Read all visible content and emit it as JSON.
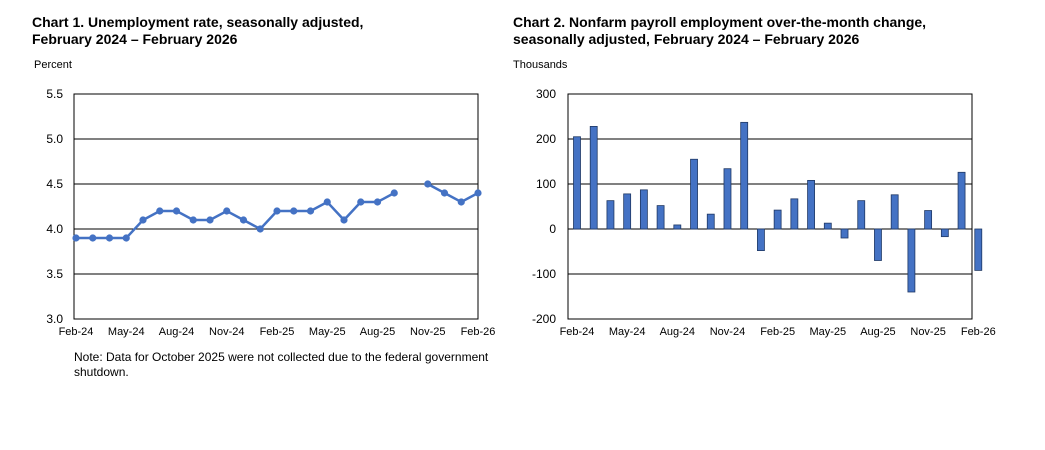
{
  "colors": {
    "series": "#4472C4",
    "bar_fill": "#4472C4",
    "bar_stroke": "#1F3864",
    "grid": "#000000"
  },
  "charts": [
    {
      "title_line1": "Chart 1. Unemployment rate, seasonally adjusted,",
      "title_line2": "February 2024 – February 2026",
      "unit_label": "Percent",
      "note": "Note: Data for October 2025 were not collected due to the federal government shutdown."
    },
    {
      "title_line1": "Chart 2. Nonfarm payroll employment over-the-month change,",
      "title_line2": "seasonally adjusted, February 2024 – February 2026",
      "unit_label": "Thousands"
    }
  ],
  "chart_data": [
    {
      "type": "line",
      "title": "Chart 1. Unemployment rate, seasonally adjusted, February 2024 – February 2026",
      "ylabel": "Percent",
      "ylim": [
        3.0,
        5.5
      ],
      "yticks": [
        3.0,
        3.5,
        4.0,
        4.5,
        5.0,
        5.5
      ],
      "ytick_labels": [
        "3.0",
        "3.5",
        "4.0",
        "4.5",
        "5.0",
        "5.5"
      ],
      "x": [
        "Feb-24",
        "Mar-24",
        "Apr-24",
        "May-24",
        "Jun-24",
        "Jul-24",
        "Aug-24",
        "Sep-24",
        "Oct-24",
        "Nov-24",
        "Dec-24",
        "Jan-25",
        "Feb-25",
        "Mar-25",
        "Apr-25",
        "May-25",
        "Jun-25",
        "Jul-25",
        "Aug-25",
        "Sep-25",
        "Oct-25",
        "Nov-25",
        "Dec-25",
        "Jan-26",
        "Feb-26"
      ],
      "xtick_labels": [
        "Feb-24",
        "May-24",
        "Aug-24",
        "Nov-24",
        "Feb-25",
        "May-25",
        "Aug-25",
        "Nov-25",
        "Feb-26"
      ],
      "series": [
        {
          "name": "Unemployment rate",
          "values": [
            3.9,
            3.9,
            3.9,
            3.9,
            4.1,
            4.2,
            4.2,
            4.1,
            4.1,
            4.2,
            4.1,
            4.0,
            4.2,
            4.2,
            4.2,
            4.3,
            4.1,
            4.3,
            4.3,
            4.4,
            null,
            4.5,
            4.4,
            4.3,
            4.4
          ]
        }
      ],
      "grid": true
    },
    {
      "type": "bar",
      "title": "Chart 2. Nonfarm payroll employment over-the-month change, seasonally adjusted, February 2024 – February 2026",
      "ylabel": "Thousands",
      "ylim": [
        -200,
        300
      ],
      "yticks": [
        -200,
        -100,
        0,
        100,
        200,
        300
      ],
      "ytick_labels": [
        "-200",
        "-100",
        "0",
        "100",
        "200",
        "300"
      ],
      "categories": [
        "Feb-24",
        "Mar-24",
        "Apr-24",
        "May-24",
        "Jun-24",
        "Jul-24",
        "Aug-24",
        "Sep-24",
        "Oct-24",
        "Nov-24",
        "Dec-24",
        "Jan-25",
        "Feb-25",
        "Mar-25",
        "Apr-25",
        "May-25",
        "Jun-25",
        "Jul-25",
        "Aug-25",
        "Sep-25",
        "Oct-25",
        "Nov-25",
        "Dec-25",
        "Jan-26",
        "Feb-26"
      ],
      "xtick_labels": [
        "Feb-24",
        "May-24",
        "Aug-24",
        "Nov-24",
        "Feb-25",
        "May-25",
        "Aug-25",
        "Nov-25",
        "Feb-26"
      ],
      "values": [
        205,
        228,
        63,
        78,
        87,
        52,
        9,
        155,
        33,
        134,
        237,
        -48,
        42,
        67,
        108,
        13,
        -20,
        63,
        -70,
        76,
        -140,
        41,
        -17,
        126,
        -92
      ],
      "grid": true
    }
  ]
}
